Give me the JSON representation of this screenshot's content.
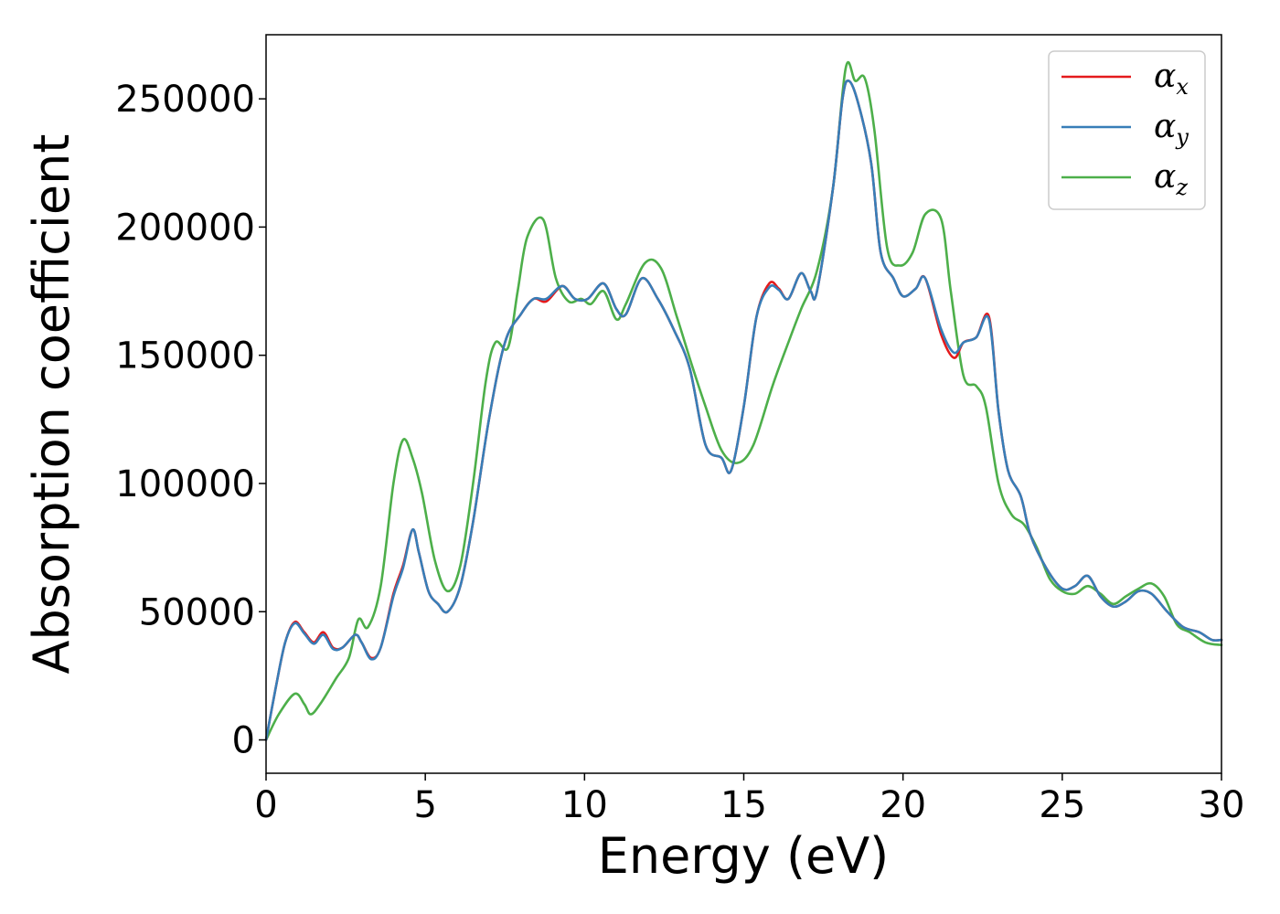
{
  "chart_data": {
    "type": "line",
    "title": "",
    "xlabel": "Energy (eV)",
    "ylabel": "Absorption coefficient",
    "xlim": [
      0,
      30
    ],
    "ylim": [
      -13000,
      275000
    ],
    "xticks": [
      0,
      5,
      10,
      15,
      20,
      25,
      30
    ],
    "yticks": [
      0,
      50000,
      100000,
      150000,
      200000,
      250000
    ],
    "grid": false,
    "legend": {
      "placement": "top-right"
    },
    "series": [
      {
        "name": "α",
        "subscript": "x",
        "color": "#e41a1c",
        "points": [
          [
            0,
            0
          ],
          [
            0.3,
            20000
          ],
          [
            0.6,
            38000
          ],
          [
            0.9,
            46000
          ],
          [
            1.2,
            42000
          ],
          [
            1.5,
            38000
          ],
          [
            1.8,
            42000
          ],
          [
            2.1,
            36000
          ],
          [
            2.4,
            36000
          ],
          [
            2.8,
            41000
          ],
          [
            3.0,
            38000
          ],
          [
            3.3,
            32000
          ],
          [
            3.6,
            36000
          ],
          [
            4.0,
            57000
          ],
          [
            4.3,
            68000
          ],
          [
            4.6,
            82000
          ],
          [
            4.8,
            73000
          ],
          [
            5.1,
            58000
          ],
          [
            5.4,
            53000
          ],
          [
            5.7,
            50000
          ],
          [
            6.1,
            60000
          ],
          [
            6.5,
            85000
          ],
          [
            7.0,
            125000
          ],
          [
            7.5,
            155000
          ],
          [
            8.0,
            166000
          ],
          [
            8.4,
            172000
          ],
          [
            8.8,
            171000
          ],
          [
            9.3,
            177000
          ],
          [
            9.7,
            172000
          ],
          [
            10.1,
            172000
          ],
          [
            10.6,
            178000
          ],
          [
            11.0,
            168000
          ],
          [
            11.3,
            166000
          ],
          [
            11.8,
            180000
          ],
          [
            12.3,
            172000
          ],
          [
            12.8,
            160000
          ],
          [
            13.3,
            145000
          ],
          [
            13.8,
            115000
          ],
          [
            14.3,
            110000
          ],
          [
            14.6,
            105000
          ],
          [
            15.0,
            130000
          ],
          [
            15.4,
            165000
          ],
          [
            15.8,
            178000
          ],
          [
            16.1,
            176000
          ],
          [
            16.4,
            172000
          ],
          [
            16.8,
            182000
          ],
          [
            17.1,
            175000
          ],
          [
            17.3,
            175000
          ],
          [
            17.8,
            215000
          ],
          [
            18.1,
            250000
          ],
          [
            18.3,
            257000
          ],
          [
            18.6,
            248000
          ],
          [
            19.0,
            225000
          ],
          [
            19.3,
            190000
          ],
          [
            19.7,
            180000
          ],
          [
            20.0,
            173000
          ],
          [
            20.4,
            176000
          ],
          [
            20.7,
            180000
          ],
          [
            21.2,
            158000
          ],
          [
            21.6,
            149000
          ],
          [
            21.9,
            155000
          ],
          [
            22.3,
            157000
          ],
          [
            22.7,
            165000
          ],
          [
            23.0,
            128000
          ],
          [
            23.3,
            105000
          ],
          [
            23.7,
            95000
          ],
          [
            24.0,
            80000
          ],
          [
            24.5,
            67000
          ],
          [
            25.0,
            59000
          ],
          [
            25.4,
            60000
          ],
          [
            25.8,
            64000
          ],
          [
            26.2,
            56000
          ],
          [
            26.6,
            52000
          ],
          [
            27.0,
            54000
          ],
          [
            27.4,
            58000
          ],
          [
            27.8,
            57000
          ],
          [
            28.3,
            50000
          ],
          [
            28.8,
            44000
          ],
          [
            29.3,
            42000
          ],
          [
            29.7,
            39000
          ],
          [
            30.0,
            39000
          ]
        ]
      },
      {
        "name": "α",
        "subscript": "y",
        "color": "#377eb8",
        "points": [
          [
            0,
            0
          ],
          [
            0.3,
            20000
          ],
          [
            0.6,
            38000
          ],
          [
            0.9,
            45500
          ],
          [
            1.2,
            41500
          ],
          [
            1.5,
            37500
          ],
          [
            1.8,
            41000
          ],
          [
            2.1,
            35500
          ],
          [
            2.4,
            36000
          ],
          [
            2.8,
            41000
          ],
          [
            3.0,
            38000
          ],
          [
            3.3,
            31500
          ],
          [
            3.6,
            36000
          ],
          [
            4.0,
            56000
          ],
          [
            4.3,
            67000
          ],
          [
            4.6,
            82000
          ],
          [
            4.8,
            73000
          ],
          [
            5.1,
            58000
          ],
          [
            5.4,
            53000
          ],
          [
            5.7,
            50000
          ],
          [
            6.1,
            60000
          ],
          [
            6.5,
            85000
          ],
          [
            7.0,
            125000
          ],
          [
            7.5,
            155000
          ],
          [
            8.0,
            166000
          ],
          [
            8.4,
            172000
          ],
          [
            8.8,
            172000
          ],
          [
            9.3,
            177000
          ],
          [
            9.7,
            172000
          ],
          [
            10.1,
            172000
          ],
          [
            10.6,
            178000
          ],
          [
            11.0,
            168000
          ],
          [
            11.3,
            166000
          ],
          [
            11.8,
            180000
          ],
          [
            12.3,
            172000
          ],
          [
            12.8,
            160000
          ],
          [
            13.3,
            145000
          ],
          [
            13.8,
            115000
          ],
          [
            14.3,
            110000
          ],
          [
            14.6,
            105000
          ],
          [
            15.0,
            130000
          ],
          [
            15.4,
            165000
          ],
          [
            15.8,
            176500
          ],
          [
            16.1,
            175500
          ],
          [
            16.4,
            172000
          ],
          [
            16.8,
            182000
          ],
          [
            17.1,
            175000
          ],
          [
            17.3,
            175000
          ],
          [
            17.8,
            215000
          ],
          [
            18.1,
            250000
          ],
          [
            18.3,
            257000
          ],
          [
            18.6,
            248000
          ],
          [
            19.0,
            225000
          ],
          [
            19.3,
            190000
          ],
          [
            19.7,
            180000
          ],
          [
            20.0,
            173000
          ],
          [
            20.4,
            176000
          ],
          [
            20.7,
            180000
          ],
          [
            21.2,
            160000
          ],
          [
            21.6,
            151000
          ],
          [
            21.9,
            155000
          ],
          [
            22.3,
            157000
          ],
          [
            22.7,
            164000
          ],
          [
            23.0,
            128000
          ],
          [
            23.3,
            105000
          ],
          [
            23.7,
            95000
          ],
          [
            24.0,
            80000
          ],
          [
            24.5,
            67000
          ],
          [
            25.0,
            59000
          ],
          [
            25.4,
            60000
          ],
          [
            25.8,
            64000
          ],
          [
            26.2,
            56000
          ],
          [
            26.6,
            52000
          ],
          [
            27.0,
            54000
          ],
          [
            27.4,
            58000
          ],
          [
            27.8,
            57000
          ],
          [
            28.3,
            50000
          ],
          [
            28.8,
            44000
          ],
          [
            29.3,
            42000
          ],
          [
            29.7,
            39000
          ],
          [
            30.0,
            39000
          ]
        ]
      },
      {
        "name": "α",
        "subscript": "z",
        "color": "#4daf4a",
        "points": [
          [
            0,
            0
          ],
          [
            0.4,
            10000
          ],
          [
            0.9,
            18000
          ],
          [
            1.2,
            14000
          ],
          [
            1.4,
            10000
          ],
          [
            1.7,
            14000
          ],
          [
            2.2,
            24000
          ],
          [
            2.6,
            32000
          ],
          [
            2.9,
            47000
          ],
          [
            3.2,
            44000
          ],
          [
            3.6,
            60000
          ],
          [
            4.0,
            100000
          ],
          [
            4.3,
            117000
          ],
          [
            4.6,
            110000
          ],
          [
            4.9,
            96000
          ],
          [
            5.3,
            70000
          ],
          [
            5.7,
            58000
          ],
          [
            6.1,
            68000
          ],
          [
            6.5,
            100000
          ],
          [
            6.9,
            140000
          ],
          [
            7.2,
            155000
          ],
          [
            7.6,
            153000
          ],
          [
            7.9,
            175000
          ],
          [
            8.2,
            196000
          ],
          [
            8.7,
            203000
          ],
          [
            9.1,
            180000
          ],
          [
            9.5,
            171000
          ],
          [
            9.9,
            172000
          ],
          [
            10.2,
            170000
          ],
          [
            10.6,
            175000
          ],
          [
            11.0,
            164000
          ],
          [
            11.3,
            170000
          ],
          [
            11.9,
            186000
          ],
          [
            12.4,
            184000
          ],
          [
            12.9,
            165000
          ],
          [
            13.4,
            145000
          ],
          [
            13.8,
            130000
          ],
          [
            14.3,
            113000
          ],
          [
            14.8,
            108000
          ],
          [
            15.3,
            115000
          ],
          [
            15.9,
            138000
          ],
          [
            16.4,
            155000
          ],
          [
            16.8,
            168000
          ],
          [
            17.3,
            183000
          ],
          [
            17.8,
            215000
          ],
          [
            18.2,
            262000
          ],
          [
            18.5,
            257000
          ],
          [
            18.8,
            258000
          ],
          [
            19.1,
            238000
          ],
          [
            19.5,
            192000
          ],
          [
            19.9,
            185000
          ],
          [
            20.3,
            190000
          ],
          [
            20.7,
            205000
          ],
          [
            21.2,
            203000
          ],
          [
            21.5,
            175000
          ],
          [
            21.9,
            142000
          ],
          [
            22.3,
            138000
          ],
          [
            22.6,
            130000
          ],
          [
            23.0,
            100000
          ],
          [
            23.4,
            88000
          ],
          [
            23.8,
            84000
          ],
          [
            24.2,
            75000
          ],
          [
            24.6,
            63000
          ],
          [
            25.0,
            58000
          ],
          [
            25.4,
            57000
          ],
          [
            25.8,
            60000
          ],
          [
            26.2,
            57000
          ],
          [
            26.6,
            53000
          ],
          [
            27.0,
            56000
          ],
          [
            27.4,
            59000
          ],
          [
            27.8,
            61000
          ],
          [
            28.2,
            56000
          ],
          [
            28.6,
            45000
          ],
          [
            29.0,
            42000
          ],
          [
            29.5,
            38000
          ],
          [
            30.0,
            37000
          ]
        ]
      }
    ]
  }
}
